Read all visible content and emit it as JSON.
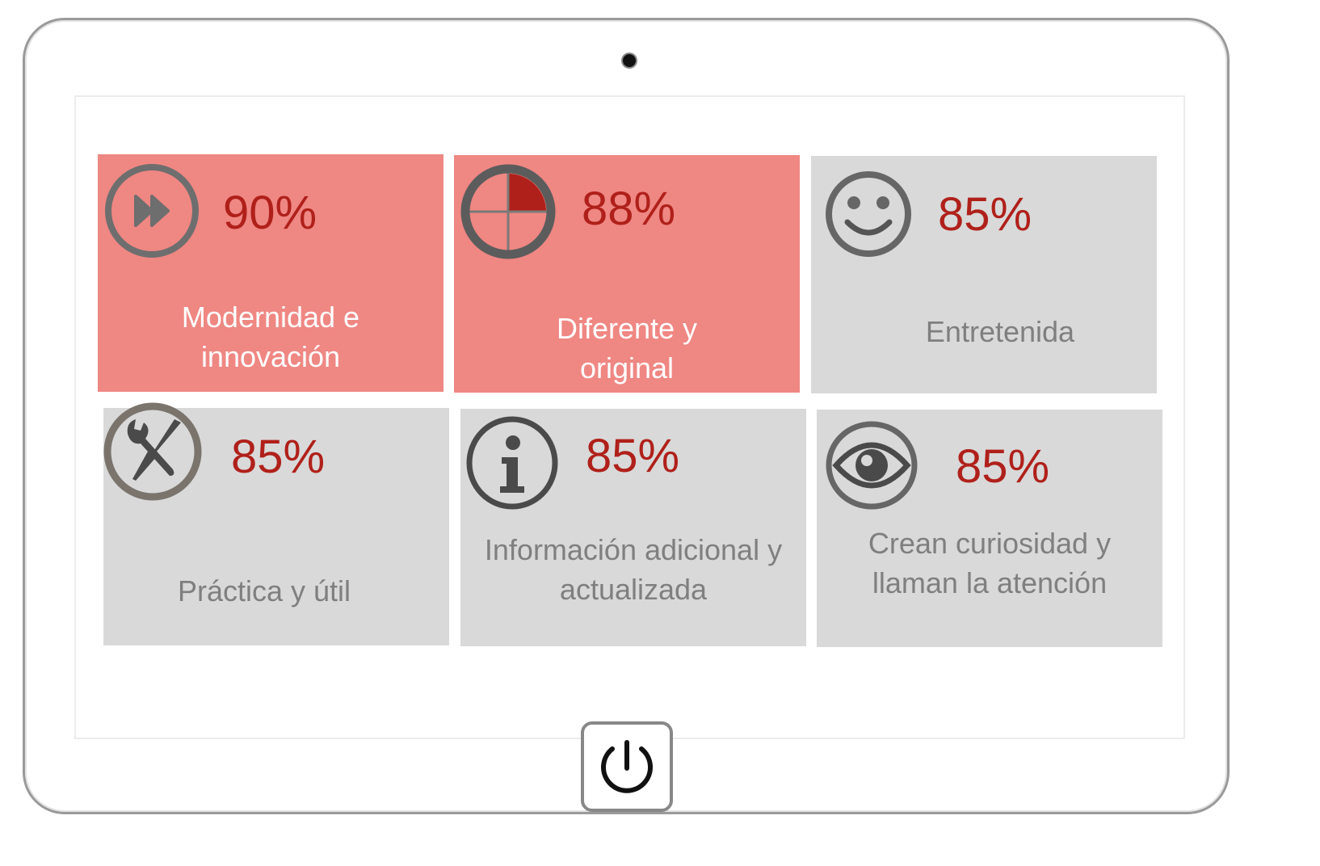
{
  "colors": {
    "highlight": "#ef8783",
    "neutral": "#d9d9d9",
    "percent": "#b0201a"
  },
  "cards": [
    {
      "percent": "90%",
      "label_lines": [
        "Modernidad e",
        "innovación"
      ],
      "icon": "fast-forward-icon",
      "highlighted": true
    },
    {
      "percent": "88%",
      "label_lines": [
        "Diferente y",
        "original"
      ],
      "icon": "target-quadrant-icon",
      "highlighted": true
    },
    {
      "percent": "85%",
      "label_lines": [
        "Entretenida"
      ],
      "icon": "smiley-icon",
      "highlighted": false
    },
    {
      "percent": "85%",
      "label_lines": [
        "Práctica y útil"
      ],
      "icon": "tools-icon",
      "highlighted": false
    },
    {
      "percent": "85%",
      "label_lines": [
        "Información adicional y",
        "actualizada"
      ],
      "icon": "info-icon",
      "highlighted": false
    },
    {
      "percent": "85%",
      "label_lines": [
        "Crean curiosidad y",
        "llaman la atención"
      ],
      "icon": "eye-icon",
      "highlighted": false
    }
  ],
  "power_icon": "power-icon"
}
